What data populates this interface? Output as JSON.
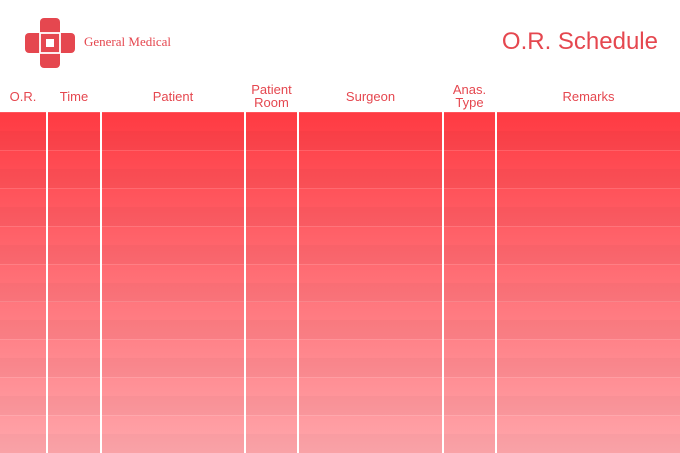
{
  "brand": {
    "name": "General Medical",
    "accent_color": "#e5474f",
    "logo_icon": "medical-cross-icon"
  },
  "page": {
    "title": "O.R. Schedule"
  },
  "table": {
    "columns": [
      {
        "key": "or",
        "label": "O.R."
      },
      {
        "key": "time",
        "label": "Time"
      },
      {
        "key": "patient",
        "label": "Patient"
      },
      {
        "key": "patient_room",
        "label": "Patient\nRoom"
      },
      {
        "key": "surgeon",
        "label": "Surgeon"
      },
      {
        "key": "anas_type",
        "label": "Anas.\nType"
      },
      {
        "key": "remarks",
        "label": "Remarks"
      }
    ],
    "row_count": 9,
    "gradient": {
      "top": "#ff3a42",
      "bottom": "#ffa6ab"
    }
  }
}
